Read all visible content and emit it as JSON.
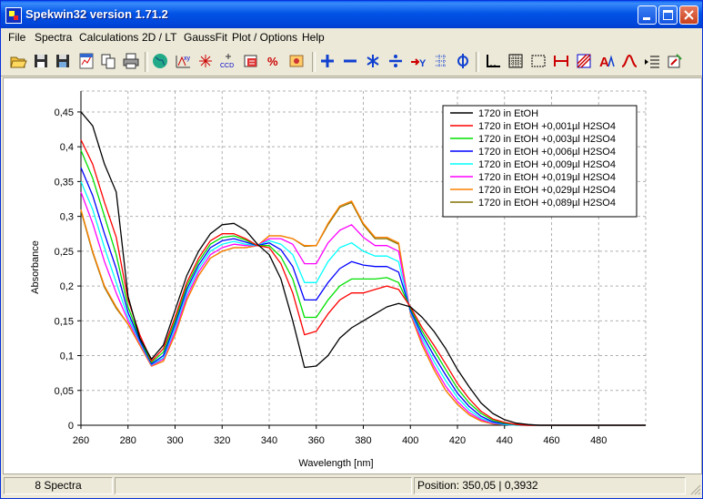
{
  "window": {
    "title": "Spekwin32 version 1.71.2"
  },
  "menu": [
    "File",
    "Spectra",
    "Calculations",
    "2D / LT",
    "GaussFit",
    "Plot / Options",
    "Help"
  ],
  "toolbar_icons": [
    "open-icon",
    "save-icon",
    "save-as-icon",
    "export-icon",
    "copy-icon",
    "print-icon",
    "globe-icon",
    "peak-label-icon",
    "peak-marker-icon",
    "ccd-icon",
    "import-icon",
    "percent-icon",
    "camera-icon",
    "add-icon",
    "subtract-icon",
    "multiply-icon",
    "divide-icon",
    "transform-icon",
    "grid-dots-icon",
    "phi-icon",
    "axis-icon",
    "grid-icon",
    "frame-icon",
    "range-icon",
    "hatch-icon",
    "peak-a-icon",
    "peak-icon",
    "list-icon",
    "settings-icon"
  ],
  "status": {
    "count": "8 Spectra",
    "middle": "",
    "position": "Position: 350,05  |  0,3932"
  },
  "chart_data": {
    "type": "line",
    "xlabel": "Wavelength [nm]",
    "ylabel": "Absorbance",
    "xlim": [
      260,
      500
    ],
    "ylim": [
      0,
      0.48
    ],
    "xticks": [
      260,
      280,
      300,
      320,
      340,
      360,
      380,
      400,
      420,
      440,
      460,
      480
    ],
    "xtick_labels": [
      "260",
      "280",
      "300",
      "320",
      "340",
      "360",
      "380",
      "400",
      "420",
      "440",
      "460",
      "480"
    ],
    "yticks": [
      0,
      0.05,
      0.1,
      0.15,
      0.2,
      0.25,
      0.3,
      0.35,
      0.4,
      0.45
    ],
    "ytick_labels": [
      "0",
      "0,05",
      "0,1",
      "0,15",
      "0,2",
      "0,25",
      "0,3",
      "0,35",
      "0,4",
      "0,45"
    ],
    "grid": true,
    "legend_position": "top-right",
    "x": [
      260,
      265,
      270,
      275,
      280,
      285,
      290,
      295,
      300,
      305,
      310,
      315,
      320,
      325,
      330,
      335,
      340,
      345,
      350,
      355,
      360,
      365,
      370,
      375,
      380,
      385,
      390,
      395,
      400,
      405,
      410,
      415,
      420,
      425,
      430,
      435,
      440,
      445,
      450,
      455,
      460,
      470,
      480,
      490,
      500
    ],
    "series": [
      {
        "name": "1720 in EtOH",
        "color": "#000000",
        "values": [
          0.45,
          0.43,
          0.375,
          0.335,
          0.185,
          0.125,
          0.095,
          0.115,
          0.165,
          0.215,
          0.25,
          0.275,
          0.288,
          0.29,
          0.28,
          0.26,
          0.245,
          0.21,
          0.15,
          0.083,
          0.085,
          0.1,
          0.125,
          0.14,
          0.15,
          0.16,
          0.17,
          0.175,
          0.17,
          0.155,
          0.135,
          0.11,
          0.08,
          0.055,
          0.032,
          0.017,
          0.008,
          0.003,
          0.001,
          0,
          0,
          0,
          0,
          0,
          0
        ]
      },
      {
        "name": "1720 in EtOH +0,001µl H2SO4",
        "color": "#ff0000",
        "values": [
          0.41,
          0.375,
          0.32,
          0.27,
          0.18,
          0.13,
          0.092,
          0.11,
          0.155,
          0.205,
          0.24,
          0.265,
          0.275,
          0.275,
          0.268,
          0.258,
          0.255,
          0.232,
          0.19,
          0.13,
          0.135,
          0.16,
          0.18,
          0.19,
          0.19,
          0.195,
          0.2,
          0.195,
          0.17,
          0.14,
          0.115,
          0.088,
          0.06,
          0.038,
          0.02,
          0.009,
          0.004,
          0.001,
          0,
          0,
          0,
          0,
          0,
          0,
          0
        ]
      },
      {
        "name": "1720 in EtOH +0,003µl H2SO4",
        "color": "#00e000",
        "values": [
          0.395,
          0.355,
          0.3,
          0.245,
          0.17,
          0.125,
          0.09,
          0.105,
          0.15,
          0.2,
          0.235,
          0.26,
          0.27,
          0.272,
          0.266,
          0.258,
          0.258,
          0.242,
          0.21,
          0.155,
          0.155,
          0.18,
          0.2,
          0.21,
          0.21,
          0.21,
          0.212,
          0.205,
          0.168,
          0.135,
          0.108,
          0.08,
          0.053,
          0.032,
          0.017,
          0.007,
          0.003,
          0.001,
          0,
          0,
          0,
          0,
          0,
          0,
          0
        ]
      },
      {
        "name": "1720 in EtOH +0,006µl H2SO4",
        "color": "#0000ff",
        "values": [
          0.37,
          0.33,
          0.275,
          0.225,
          0.162,
          0.122,
          0.088,
          0.1,
          0.145,
          0.195,
          0.23,
          0.255,
          0.265,
          0.268,
          0.263,
          0.258,
          0.262,
          0.252,
          0.228,
          0.18,
          0.18,
          0.205,
          0.225,
          0.235,
          0.23,
          0.228,
          0.228,
          0.22,
          0.165,
          0.13,
          0.1,
          0.072,
          0.046,
          0.027,
          0.013,
          0.005,
          0.002,
          0.001,
          0,
          0,
          0,
          0,
          0,
          0,
          0
        ]
      },
      {
        "name": "1720 in EtOH +0,009µl H2SO4",
        "color": "#00ffff",
        "values": [
          0.35,
          0.31,
          0.255,
          0.205,
          0.155,
          0.12,
          0.087,
          0.097,
          0.14,
          0.19,
          0.225,
          0.25,
          0.26,
          0.264,
          0.26,
          0.258,
          0.265,
          0.26,
          0.245,
          0.205,
          0.205,
          0.235,
          0.255,
          0.262,
          0.25,
          0.243,
          0.243,
          0.235,
          0.163,
          0.125,
          0.092,
          0.064,
          0.04,
          0.022,
          0.01,
          0.004,
          0.001,
          0,
          0,
          0,
          0,
          0,
          0,
          0,
          0
        ]
      },
      {
        "name": "1720 in EtOH +0,019µl H2SO4",
        "color": "#ff00ff",
        "values": [
          0.335,
          0.29,
          0.235,
          0.19,
          0.15,
          0.118,
          0.086,
          0.095,
          0.135,
          0.185,
          0.22,
          0.245,
          0.255,
          0.26,
          0.258,
          0.258,
          0.268,
          0.268,
          0.26,
          0.232,
          0.232,
          0.262,
          0.28,
          0.288,
          0.27,
          0.258,
          0.258,
          0.25,
          0.162,
          0.12,
          0.085,
          0.056,
          0.034,
          0.018,
          0.008,
          0.003,
          0.001,
          0,
          0,
          0,
          0,
          0,
          0,
          0,
          0
        ]
      },
      {
        "name": "1720 in EtOH +0,029µl H2SO4",
        "color": "#ff8000",
        "values": [
          0.31,
          0.25,
          0.2,
          0.17,
          0.145,
          0.115,
          0.085,
          0.092,
          0.13,
          0.18,
          0.215,
          0.24,
          0.25,
          0.255,
          0.255,
          0.258,
          0.272,
          0.272,
          0.268,
          0.258,
          0.258,
          0.29,
          0.315,
          0.322,
          0.29,
          0.27,
          0.27,
          0.262,
          0.16,
          0.115,
          0.08,
          0.05,
          0.03,
          0.015,
          0.006,
          0.002,
          0.001,
          0,
          0,
          0,
          0,
          0,
          0,
          0,
          0
        ]
      },
      {
        "name": "1720 in EtOH +0,089µl H2SO4",
        "color": "#807000",
        "values": [
          0.308,
          0.248,
          0.198,
          0.168,
          0.145,
          0.115,
          0.085,
          0.092,
          0.13,
          0.18,
          0.215,
          0.24,
          0.25,
          0.255,
          0.255,
          0.258,
          0.272,
          0.272,
          0.268,
          0.257,
          0.258,
          0.288,
          0.313,
          0.32,
          0.288,
          0.268,
          0.268,
          0.26,
          0.16,
          0.115,
          0.08,
          0.05,
          0.03,
          0.015,
          0.006,
          0.002,
          0.001,
          0,
          0,
          0,
          0,
          0,
          0,
          0,
          0
        ]
      }
    ]
  }
}
